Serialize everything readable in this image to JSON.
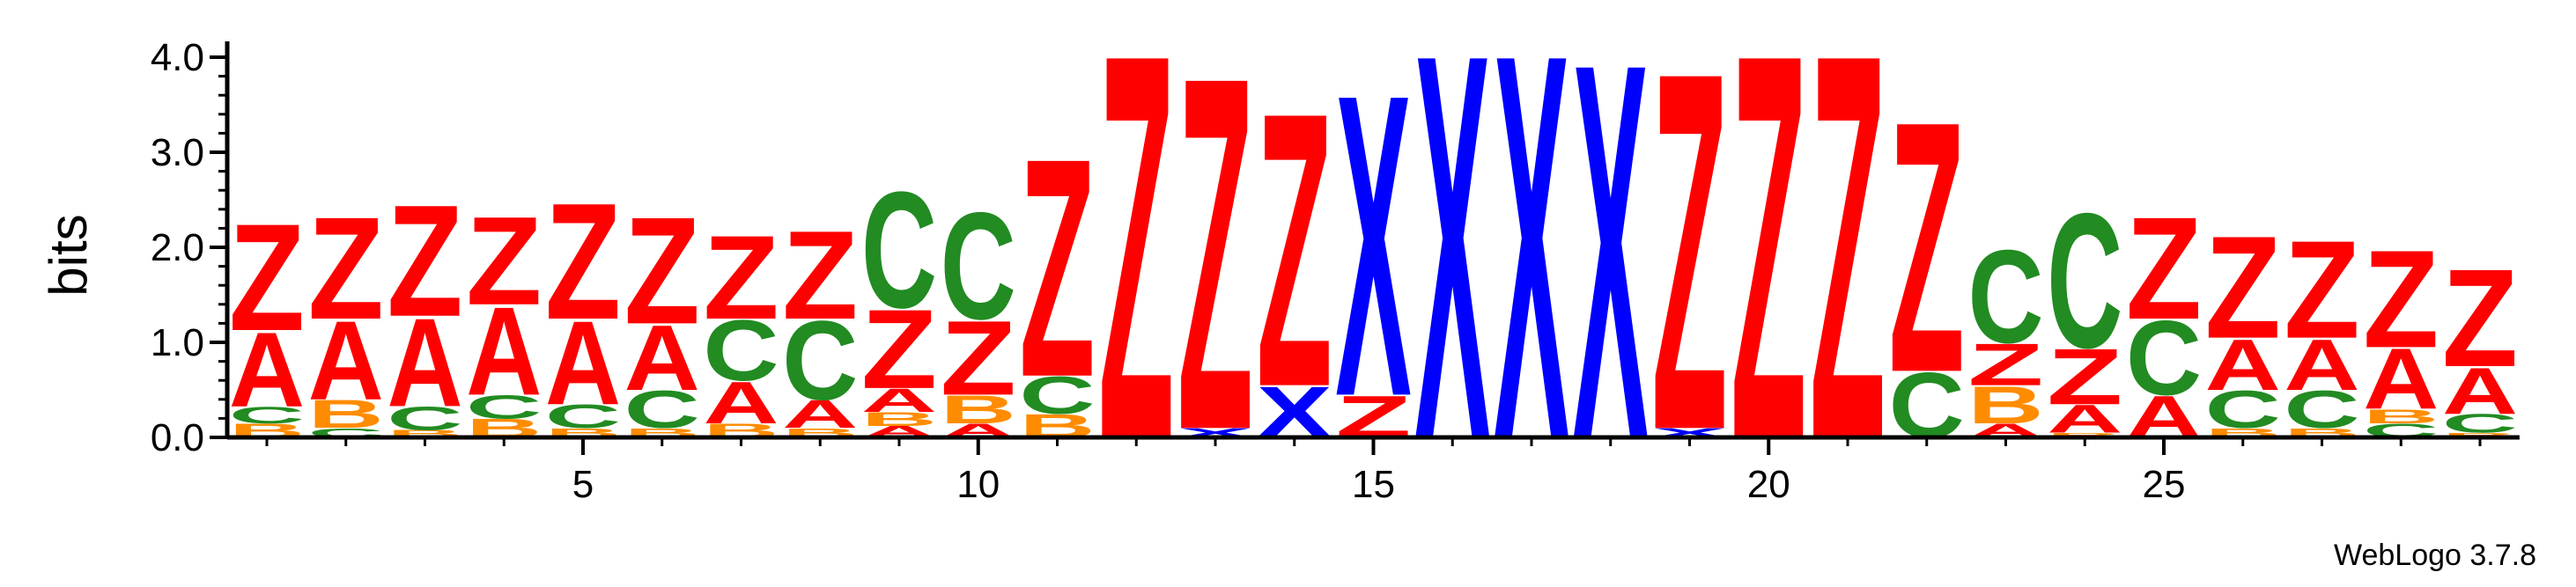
{
  "chart_data": {
    "type": "sequence-logo",
    "ylabel": "bits",
    "ylim": [
      0,
      4.0
    ],
    "yticks": [
      "0.0",
      "1.0",
      "2.0",
      "3.0",
      "4.0"
    ],
    "xticks": [
      5,
      10,
      15,
      20,
      25
    ],
    "xlim": [
      1,
      29
    ],
    "colors": {
      "Z": "#ff0000",
      "A": "#ff0000",
      "X": "#0000ff",
      "C": "#228b22",
      "B": "#ff8c00"
    },
    "positions": [
      {
        "pos": 1,
        "stack": [
          [
            "B",
            0.15
          ],
          [
            "C",
            0.18
          ],
          [
            "A",
            0.8
          ],
          [
            "Z",
            1.15
          ]
        ]
      },
      {
        "pos": 2,
        "stack": [
          [
            "C",
            0.1
          ],
          [
            "B",
            0.3
          ],
          [
            "A",
            0.85
          ],
          [
            "Z",
            1.1
          ]
        ]
      },
      {
        "pos": 3,
        "stack": [
          [
            "B",
            0.08
          ],
          [
            "C",
            0.25
          ],
          [
            "A",
            0.95
          ],
          [
            "Z",
            1.2
          ]
        ]
      },
      {
        "pos": 4,
        "stack": [
          [
            "B",
            0.2
          ],
          [
            "C",
            0.25
          ],
          [
            "A",
            0.95
          ],
          [
            "Z",
            0.95
          ]
        ]
      },
      {
        "pos": 5,
        "stack": [
          [
            "B",
            0.1
          ],
          [
            "C",
            0.25
          ],
          [
            "A",
            0.9
          ],
          [
            "Z",
            1.25
          ]
        ]
      },
      {
        "pos": 6,
        "stack": [
          [
            "B",
            0.1
          ],
          [
            "C",
            0.4
          ],
          [
            "A",
            0.7
          ],
          [
            "Z",
            1.15
          ]
        ]
      },
      {
        "pos": 7,
        "stack": [
          [
            "B",
            0.15
          ],
          [
            "A",
            0.45
          ],
          [
            "C",
            0.65
          ],
          [
            "Z",
            0.9
          ]
        ]
      },
      {
        "pos": 8,
        "stack": [
          [
            "B",
            0.1
          ],
          [
            "A",
            0.3
          ],
          [
            "C",
            0.85
          ],
          [
            "Z",
            0.95
          ]
        ]
      },
      {
        "pos": 9,
        "stack": [
          [
            "A",
            0.12
          ],
          [
            "B",
            0.15
          ],
          [
            "A",
            0.25
          ],
          [
            "Z",
            0.85
          ],
          [
            "C",
            1.25
          ]
        ]
      },
      {
        "pos": 10,
        "stack": [
          [
            "A",
            0.15
          ],
          [
            "B",
            0.3
          ],
          [
            "Z",
            0.8
          ],
          [
            "C",
            1.15
          ]
        ]
      },
      {
        "pos": 11,
        "stack": [
          [
            "B",
            0.25
          ],
          [
            "C",
            0.4
          ],
          [
            "Z",
            2.35
          ]
        ]
      },
      {
        "pos": 12,
        "stack": [
          [
            "Z",
            4.15
          ]
        ]
      },
      {
        "pos": 13,
        "stack": [
          [
            "X",
            0.1
          ],
          [
            "Z",
            3.8
          ]
        ]
      },
      {
        "pos": 14,
        "stack": [
          [
            "X",
            0.55
          ],
          [
            "Z",
            2.95
          ]
        ]
      },
      {
        "pos": 15,
        "stack": [
          [
            "Z",
            0.45
          ],
          [
            "X",
            3.25
          ]
        ]
      },
      {
        "pos": 16,
        "stack": [
          [
            "X",
            4.15
          ]
        ]
      },
      {
        "pos": 17,
        "stack": [
          [
            "X",
            4.15
          ]
        ]
      },
      {
        "pos": 18,
        "stack": [
          [
            "X",
            4.05
          ]
        ]
      },
      {
        "pos": 19,
        "stack": [
          [
            "X",
            0.1
          ],
          [
            "Z",
            3.85
          ]
        ]
      },
      {
        "pos": 20,
        "stack": [
          [
            "Z",
            4.15
          ]
        ]
      },
      {
        "pos": 21,
        "stack": [
          [
            "Z",
            4.15
          ]
        ]
      },
      {
        "pos": 22,
        "stack": [
          [
            "C",
            0.7
          ],
          [
            "Z",
            2.7
          ]
        ]
      },
      {
        "pos": 23,
        "stack": [
          [
            "A",
            0.15
          ],
          [
            "B",
            0.4
          ],
          [
            "Z",
            0.45
          ],
          [
            "C",
            1.0
          ]
        ]
      },
      {
        "pos": 24,
        "stack": [
          [
            "B",
            0.05
          ],
          [
            "A",
            0.3
          ],
          [
            "Z",
            0.6
          ],
          [
            "C",
            1.45
          ]
        ]
      },
      {
        "pos": 25,
        "stack": [
          [
            "A",
            0.45
          ],
          [
            "C",
            0.8
          ],
          [
            "Z",
            1.1
          ]
        ]
      },
      {
        "pos": 26,
        "stack": [
          [
            "B",
            0.1
          ],
          [
            "C",
            0.4
          ],
          [
            "A",
            0.55
          ],
          [
            "Z",
            1.1
          ]
        ]
      },
      {
        "pos": 27,
        "stack": [
          [
            "B",
            0.1
          ],
          [
            "C",
            0.4
          ],
          [
            "A",
            0.55
          ],
          [
            "Z",
            1.05
          ]
        ]
      },
      {
        "pos": 28,
        "stack": [
          [
            "C",
            0.15
          ],
          [
            "B",
            0.15
          ],
          [
            "A",
            0.65
          ],
          [
            "Z",
            1.05
          ]
        ]
      },
      {
        "pos": 29,
        "stack": [
          [
            "B",
            0.05
          ],
          [
            "C",
            0.2
          ],
          [
            "A",
            0.5
          ],
          [
            "Z",
            1.05
          ]
        ]
      }
    ]
  },
  "footer": {
    "version": "WebLogo 3.7.8"
  }
}
